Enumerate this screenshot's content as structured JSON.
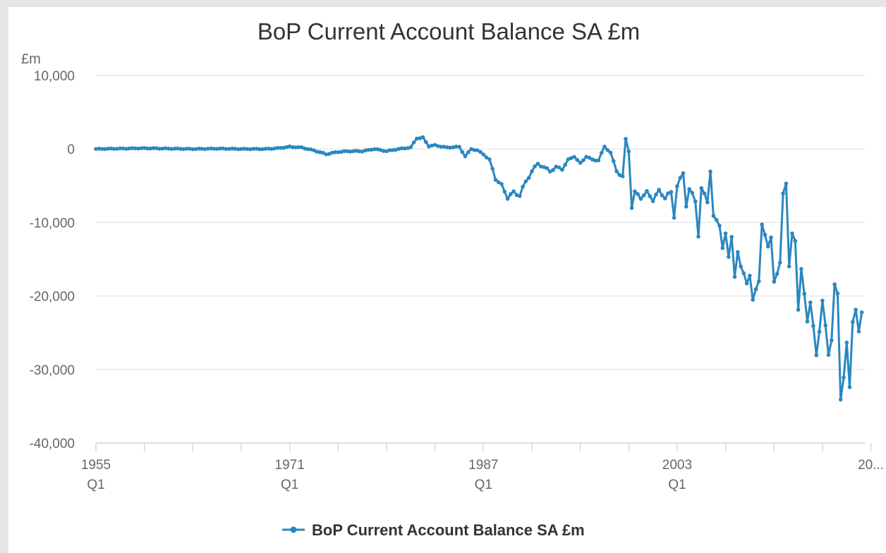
{
  "chart_data": {
    "type": "line",
    "title": "BoP Current Account Balance SA £m",
    "y_unit_label": "£m",
    "ylim": [
      -40000,
      10000
    ],
    "yticks": [
      {
        "value": 10000,
        "label": "10,000"
      },
      {
        "value": 0,
        "label": "0"
      },
      {
        "value": -10000,
        "label": "-10,000"
      },
      {
        "value": -20000,
        "label": "-20,000"
      },
      {
        "value": -30000,
        "label": "-30,000"
      },
      {
        "value": -40000,
        "label": "-40,000"
      }
    ],
    "x_period": "quarterly",
    "x_start": "1955 Q1",
    "xlim": [
      1955,
      2018.5
    ],
    "x_tick_years": [
      1955,
      1959,
      1963,
      1967,
      1971,
      1975,
      1979,
      1983,
      1987,
      1991,
      1995,
      1999,
      2003,
      2007,
      2011,
      2015,
      2019
    ],
    "x_labels": [
      {
        "year": 1955,
        "line1": "1955",
        "line2": "Q1"
      },
      {
        "year": 1971,
        "line1": "1971",
        "line2": "Q1"
      },
      {
        "year": 1987,
        "line1": "1987",
        "line2": "Q1"
      },
      {
        "year": 2003,
        "line1": "2003",
        "line2": "Q1"
      },
      {
        "year": 2019,
        "line1": "20...",
        "line2": ""
      }
    ],
    "grid": true,
    "legend": "bottom-center",
    "color": "#2a87c0",
    "series": [
      {
        "name": "BoP Current Account Balance SA £m",
        "anchors": [
          [
            1955.0,
            0
          ],
          [
            1957.0,
            50
          ],
          [
            1959.0,
            100
          ],
          [
            1961.0,
            50
          ],
          [
            1963.0,
            0
          ],
          [
            1965.0,
            50
          ],
          [
            1967.0,
            0
          ],
          [
            1969.0,
            0
          ],
          [
            1970.0,
            100
          ],
          [
            1971.0,
            300
          ],
          [
            1972.0,
            200
          ],
          [
            1973.0,
            -200
          ],
          [
            1974.0,
            -700
          ],
          [
            1975.0,
            -400
          ],
          [
            1976.0,
            -300
          ],
          [
            1977.0,
            -300
          ],
          [
            1978.0,
            0
          ],
          [
            1979.0,
            -300
          ],
          [
            1980.0,
            0
          ],
          [
            1981.0,
            200
          ],
          [
            1981.5,
            1500
          ],
          [
            1982.0,
            1500
          ],
          [
            1982.5,
            400
          ],
          [
            1983.0,
            500
          ],
          [
            1984.0,
            200
          ],
          [
            1985.0,
            300
          ],
          [
            1985.5,
            -1000
          ],
          [
            1986.0,
            0
          ],
          [
            1986.5,
            -200
          ],
          [
            1987.0,
            -700
          ],
          [
            1987.5,
            -1500
          ],
          [
            1988.0,
            -4000
          ],
          [
            1988.5,
            -5000
          ],
          [
            1989.0,
            -6500
          ],
          [
            1989.5,
            -6000
          ],
          [
            1990.0,
            -6200
          ],
          [
            1990.5,
            -4500
          ],
          [
            1991.0,
            -3000
          ],
          [
            1991.5,
            -2000
          ],
          [
            1992.0,
            -2500
          ],
          [
            1992.5,
            -3000
          ],
          [
            1993.0,
            -2500
          ],
          [
            1993.5,
            -2700
          ],
          [
            1994.0,
            -1500
          ],
          [
            1994.5,
            -1000
          ],
          [
            1995.0,
            -2000
          ],
          [
            1995.5,
            -1000
          ],
          [
            1996.0,
            -1500
          ],
          [
            1996.5,
            -1500
          ],
          [
            1997.0,
            300
          ],
          [
            1997.5,
            -500
          ],
          [
            1998.0,
            -3000
          ],
          [
            1998.5,
            -3800
          ],
          [
            1998.75,
            1300
          ],
          [
            1999.0,
            -300
          ],
          [
            1999.25,
            -7800
          ],
          [
            1999.5,
            -6000
          ],
          [
            2000.0,
            -6500
          ],
          [
            2000.5,
            -6000
          ],
          [
            2001.0,
            -6800
          ],
          [
            2001.5,
            -5800
          ],
          [
            2002.0,
            -6500
          ],
          [
            2002.5,
            -6000
          ],
          [
            2002.75,
            -9000
          ],
          [
            2003.0,
            -5000
          ],
          [
            2003.5,
            -3300
          ],
          [
            2003.75,
            -7500
          ],
          [
            2004.0,
            -5500
          ],
          [
            2004.5,
            -7000
          ],
          [
            2004.75,
            -11500
          ],
          [
            2005.0,
            -5500
          ],
          [
            2005.5,
            -7000
          ],
          [
            2005.75,
            -3000
          ],
          [
            2006.0,
            -9500
          ],
          [
            2006.5,
            -10000
          ],
          [
            2006.75,
            -13500
          ],
          [
            2007.0,
            -12000
          ],
          [
            2007.25,
            -14500
          ],
          [
            2007.5,
            -11500
          ],
          [
            2007.75,
            -17800
          ],
          [
            2008.0,
            -14500
          ],
          [
            2008.5,
            -16500
          ],
          [
            2008.75,
            -19000
          ],
          [
            2009.0,
            -17500
          ],
          [
            2009.25,
            -19700
          ],
          [
            2009.5,
            -19000
          ],
          [
            2009.75,
            -18800
          ],
          [
            2010.0,
            -10200
          ],
          [
            2010.25,
            -11200
          ],
          [
            2010.5,
            -13500
          ],
          [
            2010.75,
            -12500
          ],
          [
            2011.0,
            -17600
          ],
          [
            2011.25,
            -16500
          ],
          [
            2011.5,
            -16000
          ],
          [
            2011.75,
            -6200
          ],
          [
            2012.0,
            -4500
          ],
          [
            2012.25,
            -15800
          ],
          [
            2012.5,
            -12000
          ],
          [
            2012.75,
            -12500
          ],
          [
            2013.0,
            -21000
          ],
          [
            2013.25,
            -16500
          ],
          [
            2013.5,
            -20500
          ],
          [
            2013.75,
            -23000
          ],
          [
            2014.0,
            -20200
          ],
          [
            2014.25,
            -24800
          ],
          [
            2014.5,
            -28800
          ],
          [
            2014.75,
            -24000
          ],
          [
            2015.0,
            -20300
          ],
          [
            2015.25,
            -25000
          ],
          [
            2015.5,
            -28200
          ],
          [
            2015.75,
            -25000
          ],
          [
            2016.0,
            -18500
          ],
          [
            2016.25,
            -20500
          ],
          [
            2016.5,
            -33600
          ],
          [
            2016.75,
            -30000
          ],
          [
            2017.0,
            -27000
          ],
          [
            2017.25,
            -33400
          ],
          [
            2017.5,
            -22800
          ],
          [
            2017.75,
            -21400
          ],
          [
            2018.0,
            -25800
          ],
          [
            2018.25,
            -22500
          ]
        ]
      }
    ]
  }
}
